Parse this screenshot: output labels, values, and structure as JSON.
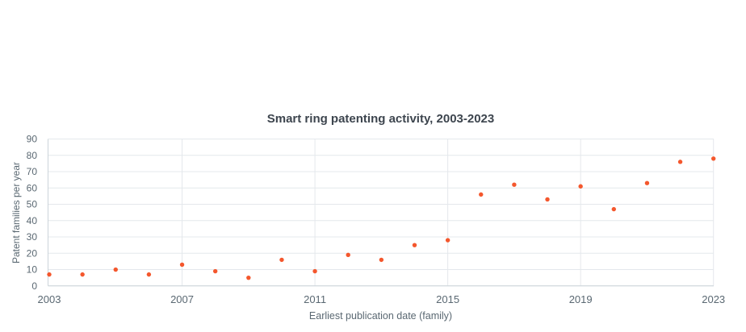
{
  "chart_data": {
    "type": "scatter",
    "title": "Smart ring patenting activity, 2003-2023",
    "xlabel": "Earliest publication date (family)",
    "ylabel": "Patent families per year",
    "x": [
      2003,
      2004,
      2005,
      2006,
      2007,
      2008,
      2009,
      2010,
      2011,
      2012,
      2013,
      2014,
      2015,
      2016,
      2017,
      2018,
      2019,
      2020,
      2021,
      2022,
      2023
    ],
    "y": [
      7,
      7,
      10,
      7,
      13,
      9,
      5,
      16,
      9,
      19,
      16,
      25,
      28,
      56,
      62,
      53,
      61,
      47,
      63,
      76,
      78
    ],
    "xlim": [
      2003,
      2023
    ],
    "ylim": [
      0,
      90
    ],
    "xticks": [
      2003,
      2007,
      2011,
      2015,
      2019,
      2023
    ],
    "yticks": [
      0,
      10,
      20,
      30,
      40,
      50,
      60,
      70,
      80,
      90
    ],
    "grid": true,
    "legend": false,
    "marker": "circle",
    "colors": {
      "point": "#f4572d",
      "grid": "#e4e8ec",
      "axis": "#ccd4da",
      "tick_text": "#5a6872",
      "axis_title_text": "#5a6872",
      "title_text": "#3d454e"
    }
  }
}
